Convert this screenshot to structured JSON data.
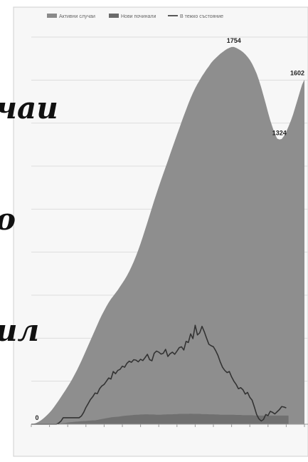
{
  "chart_data": {
    "type": "area",
    "legend": {
      "placement": "top",
      "entries": [
        {
          "label": "Активни случаи",
          "kind": "area",
          "color": "#8a8a8a"
        },
        {
          "label": "Нови починали",
          "kind": "area",
          "color": "#6a6a6a"
        },
        {
          "label": "В тежко състояние",
          "kind": "line",
          "color": "#333333"
        }
      ]
    },
    "series": [
      {
        "name": "Активни случаи",
        "type": "area",
        "color": "#8e8e8e",
        "values": [
          0,
          2,
          5,
          10,
          16,
          24,
          33,
          43,
          54,
          66,
          80,
          95,
          110,
          126,
          142,
          158,
          175,
          192,
          210,
          230,
          250,
          272,
          294,
          318,
          342,
          366,
          390,
          414,
          438,
          462,
          486,
          508,
          528,
          548,
          566,
          582,
          596,
          610,
          624,
          640,
          656,
          672,
          690,
          710,
          732,
          756,
          782,
          810,
          840,
          872,
          905,
          938,
          972,
          1006,
          1040,
          1072,
          1104,
          1135,
          1165,
          1195,
          1225,
          1256,
          1286,
          1316,
          1346,
          1375,
          1405,
          1434,
          1462,
          1490,
          1516,
          1540,
          1562,
          1582,
          1600,
          1618,
          1634,
          1650,
          1664,
          1680,
          1692,
          1702,
          1712,
          1722,
          1730,
          1738,
          1745,
          1750,
          1754,
          1754,
          1750,
          1744,
          1738,
          1730,
          1720,
          1708,
          1694,
          1676,
          1654,
          1630,
          1600,
          1566,
          1528,
          1490,
          1450,
          1412,
          1380,
          1350,
          1328,
          1324,
          1326,
          1340,
          1360,
          1384,
          1410,
          1440,
          1475,
          1510,
          1546,
          1580,
          1602
        ]
      },
      {
        "name": "В тежко състояние",
        "type": "line",
        "color": "#333333",
        "values": [
          0,
          0,
          0,
          0,
          0,
          0,
          0,
          0,
          0,
          0,
          0,
          0,
          5,
          14,
          30,
          30,
          30,
          30,
          30,
          30,
          30,
          30,
          38,
          55,
          78,
          96,
          115,
          128,
          145,
          142,
          165,
          178,
          185,
          200,
          215,
          210,
          245,
          235,
          250,
          255,
          270,
          265,
          283,
          293,
          288,
          300,
          298,
          290,
          302,
          296,
          310,
          325,
          300,
          295,
          330,
          340,
          335,
          326,
          330,
          348,
          315,
          328,
          335,
          325,
          340,
          356,
          360,
          345,
          385,
          380,
          420,
          398,
          460,
          415,
          425,
          455,
          430,
          400,
          372,
          365,
          360,
          342,
          320,
          290,
          265,
          250,
          240,
          245,
          220,
          200,
          185,
          165,
          170,
          160,
          140,
          148,
          125,
          112,
          80,
          45,
          25,
          15,
          22,
          45,
          40,
          60,
          55,
          48,
          58,
          68,
          82,
          80,
          76
        ]
      },
      {
        "name": "Нови починали",
        "type": "area",
        "color": "#707070",
        "values": [
          0,
          0,
          0,
          0,
          0,
          0,
          0,
          0,
          1,
          1,
          2,
          2,
          3,
          4,
          5,
          6,
          8,
          9,
          10,
          11,
          12,
          13,
          14,
          15,
          15,
          16,
          17,
          18,
          18,
          20,
          22,
          24,
          26,
          28,
          30,
          32,
          33,
          34,
          35,
          36,
          38,
          39,
          40,
          41,
          42,
          43,
          44,
          44,
          45,
          45,
          46,
          46,
          45,
          45,
          45,
          44,
          44,
          44,
          45,
          45,
          46,
          46,
          46,
          47,
          47,
          48,
          48,
          48,
          48,
          48,
          49,
          48,
          48,
          48,
          48,
          47,
          47,
          47,
          46,
          46,
          46,
          45,
          45,
          44,
          44,
          44,
          44,
          44,
          44,
          44,
          43,
          43,
          43,
          42,
          42,
          42,
          42,
          42,
          41,
          40,
          40,
          40,
          40,
          40,
          40,
          40,
          40,
          40,
          40,
          40,
          40,
          40,
          40,
          40
        ]
      }
    ],
    "annotations": [
      {
        "text": "1754",
        "series": 0,
        "index": 89
      },
      {
        "text": "1602",
        "series": 0,
        "index": 120
      },
      {
        "text": "1324",
        "series": 0,
        "index": 109
      },
      {
        "text": "0",
        "series": 0,
        "index": 0
      }
    ],
    "ylim": [
      0,
      1800
    ],
    "grid": true
  },
  "overlay": {
    "lines": [
      "чаи",
      "о",
      "ил"
    ]
  }
}
